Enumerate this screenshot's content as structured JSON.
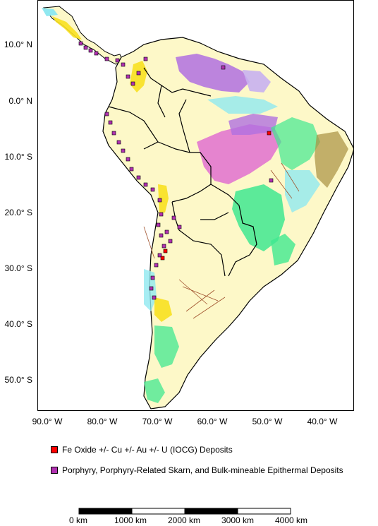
{
  "latitude_labels": [
    "10.0° N",
    "0.0° N",
    "10.0° S",
    "20.0° S",
    "30.0° S",
    "40.0° S",
    "50.0° S"
  ],
  "longitude_labels": [
    "90.0° W",
    "80.0° W",
    "70.0° W",
    "60.0° W",
    "50.0° W",
    "40.0° W"
  ],
  "legend": {
    "iocg": {
      "label": "Fe Oxide +/- Cu +/- Au +/- U (IOCG) Deposits",
      "color": "#ff0000"
    },
    "porphyry": {
      "label": "Porphyry, Porphyry-Related Skarn, and Bulk-mineable Epithermal Deposits",
      "color": "#b030b0"
    }
  },
  "scale_bar": {
    "labels": [
      "0 km",
      "1000 km",
      "2000 km",
      "3000 km",
      "4000 km"
    ]
  },
  "colors": {
    "land": "#fdf8c8",
    "ocean": "#ffffff",
    "geology_purple": "#b070e0",
    "geology_pink": "#e070d0",
    "geology_green": "#40e890",
    "geology_cyan": "#90e8f0",
    "geology_yellow": "#f8e020",
    "geology_olive": "#a89040",
    "geology_lavender": "#c8b0f0"
  }
}
